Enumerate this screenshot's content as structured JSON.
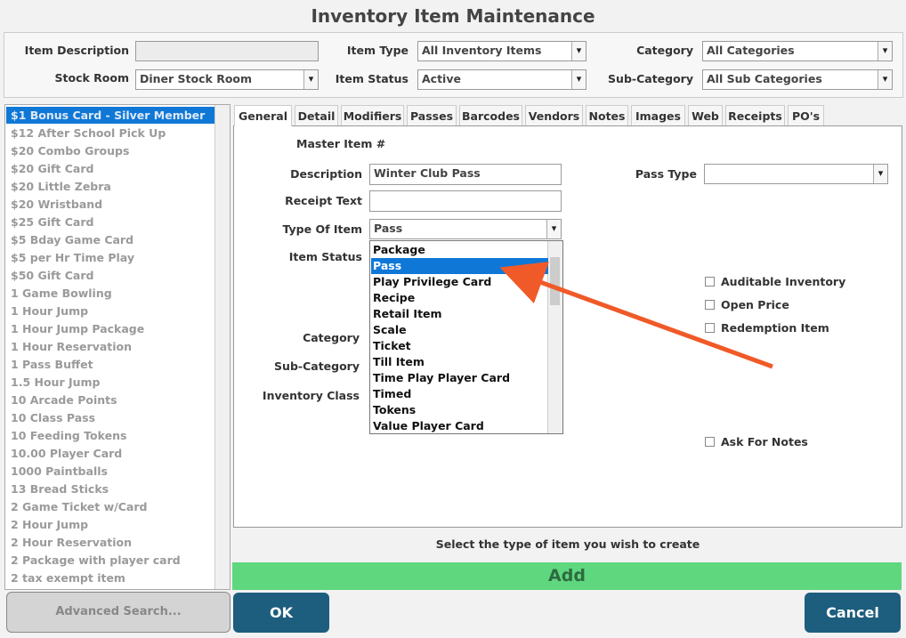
{
  "header": {
    "title": "Inventory Item Maintenance"
  },
  "filters": {
    "item_description_label": "Item Description",
    "item_type_label": "Item Type",
    "item_type": "All Inventory Items",
    "category_label": "Category",
    "category": "All Categories",
    "stock_room_label": "Stock Room",
    "stock_room": "Diner Stock Room",
    "item_status_label": "Item Status",
    "item_status": "Active",
    "sub_category_label": "Sub-Category",
    "sub_category": "All Sub Categories"
  },
  "item_list": {
    "selected": 0,
    "items": [
      "$1 Bonus Card -  Silver Member",
      "$12 After School Pick Up",
      "$20 Combo Groups",
      "$20 Gift Card",
      "$20 Little Zebra",
      "$20 Wristband",
      "$25 Gift Card",
      "$5 Bday Game Card",
      "$5 per Hr Time Play",
      "$50 Gift Card",
      "1 Game Bowling",
      "1 Hour Jump",
      "1 Hour Jump Package",
      "1 Hour Reservation",
      "1 Pass Buffet",
      "1.5 Hour Jump",
      "10 Arcade Points",
      "10 Class Pass",
      "10 Feeding Tokens",
      "10.00 Player Card",
      "1000 Paintballs",
      "13 Bread Sticks",
      "2 Game Ticket w/Card",
      "2 Hour Jump",
      "2 Hour Reservation",
      "2 Package with player card",
      "2 tax exempt item"
    ]
  },
  "tabs": {
    "active": 0,
    "items": [
      "General",
      "Detail",
      "Modifiers",
      "Passes",
      "Barcodes",
      "Vendors",
      "Notes",
      "Images",
      "Web",
      "Receipts",
      "PO's"
    ]
  },
  "form": {
    "master_item_label": "Master Item #",
    "description_label": "Description",
    "description": "Winter Club Pass",
    "receipt_text_label": "Receipt Text",
    "type_of_item_label": "Type Of Item",
    "type_of_item": "Pass",
    "item_status_label": "Item Status",
    "category_label": "Category",
    "sub_category_label": "Sub-Category",
    "inventory_class_label": "Inventory Class",
    "pass_type_label": "Pass Type"
  },
  "dropdown": {
    "selected": 1,
    "options": [
      "Package",
      "Pass",
      "Play Privilege Card",
      "Recipe",
      "Retail Item",
      "Scale",
      "Ticket",
      "Till Item",
      "Time Play Player Card",
      "Timed",
      "Tokens",
      "Value Player Card"
    ]
  },
  "checkboxes": [
    "Auditable Inventory",
    "Open Price",
    "Redemption Item",
    "Ask For Notes"
  ],
  "footer": {
    "hint": "Select the type of item you wish to create",
    "add": "Add",
    "advanced_search": "Advanced Search...",
    "ok": "OK",
    "cancel": "Cancel"
  }
}
